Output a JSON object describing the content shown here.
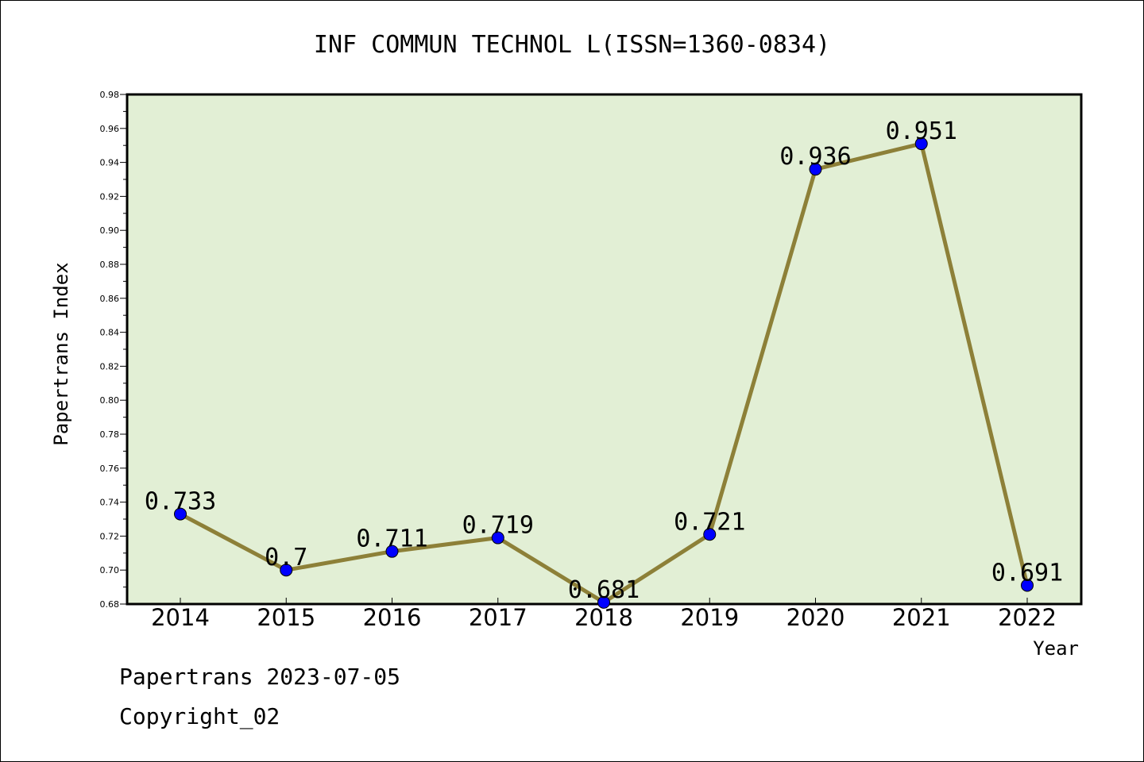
{
  "chart_data": {
    "type": "line",
    "title": "INF COMMUN TECHNOL L(ISSN=1360-0834)",
    "xlabel": "Year",
    "ylabel": "Papertrans Index",
    "categories": [
      "2014",
      "2015",
      "2016",
      "2017",
      "2018",
      "2019",
      "2020",
      "2021",
      "2022"
    ],
    "values": [
      0.733,
      0.7,
      0.711,
      0.719,
      0.681,
      0.721,
      0.936,
      0.951,
      0.691
    ],
    "data_labels": [
      "0.733",
      "0.7",
      "0.711",
      "0.719",
      "0.681",
      "0.721",
      "0.936",
      "0.951",
      "0.691"
    ],
    "ylim": [
      0.68,
      0.98
    ],
    "yticks": [
      "0.68",
      "0.70",
      "0.72",
      "0.74",
      "0.76",
      "0.78",
      "0.80",
      "0.82",
      "0.84",
      "0.86",
      "0.88",
      "0.90",
      "0.92",
      "0.94",
      "0.96",
      "0.98"
    ],
    "grid": false,
    "colors": {
      "plot_background": "#e2efd5",
      "line": "#8d8038",
      "marker": "#0000ff"
    }
  },
  "footer": {
    "line1": "Papertrans 2023-07-05",
    "line2": "Copyright_02"
  }
}
